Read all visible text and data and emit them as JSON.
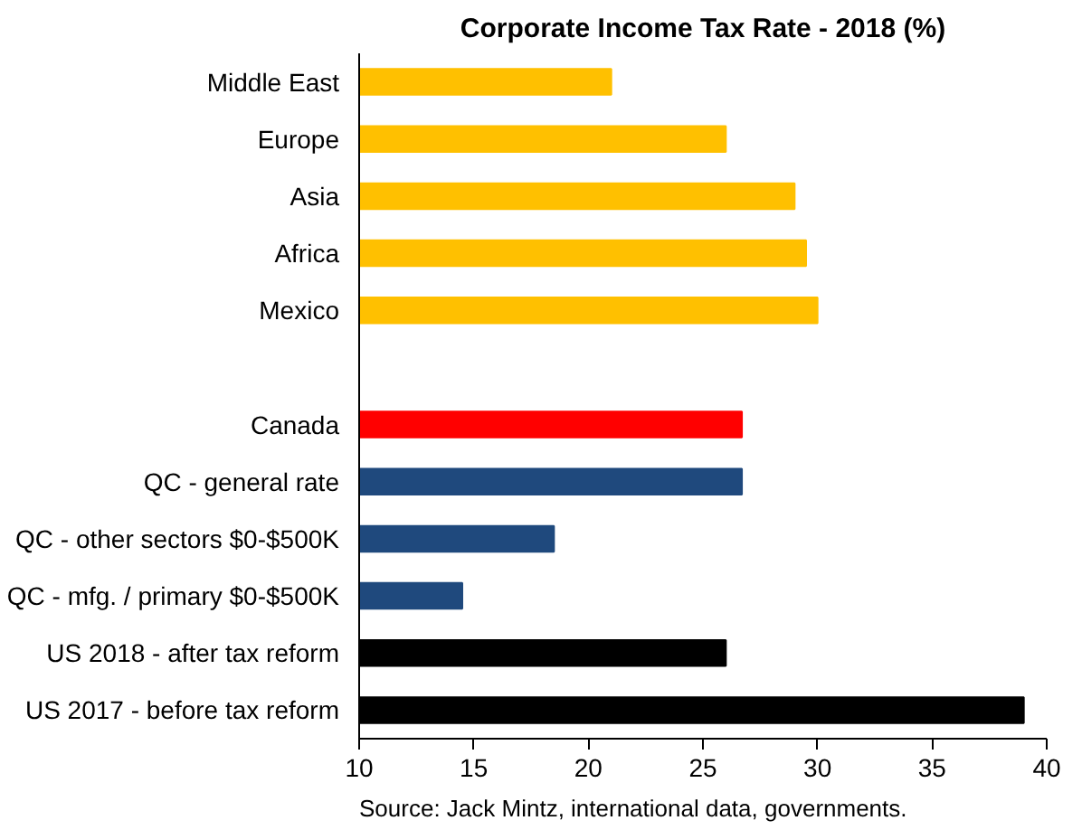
{
  "chart_data": {
    "type": "bar",
    "orientation": "horizontal",
    "title": "Corporate Income Tax Rate - 2018 (%)",
    "categories": [
      "Middle East",
      "Europe",
      "Asia",
      "Africa",
      "Mexico",
      null,
      "Canada",
      "QC - general rate",
      "QC - other sectors $0-$500K",
      "QC - mfg. / primary $0-$500K",
      "US 2018 - after tax reform",
      "US 2017 - before tax reform"
    ],
    "values": [
      21,
      26,
      29,
      29.5,
      30,
      null,
      26.7,
      26.7,
      18.5,
      14.5,
      26,
      39
    ],
    "colors": [
      "#ffc000",
      "#ffc000",
      "#ffc000",
      "#ffc000",
      "#ffc000",
      "#ffc000",
      "#ff0000",
      "#1f497d",
      "#1f497d",
      "#1f497d",
      "#000000",
      "#000000"
    ],
    "xlim": [
      10,
      40
    ],
    "xticks": [
      10,
      15,
      20,
      25,
      30,
      35,
      40
    ],
    "grid": false,
    "annotations": [
      "Source: Jack Mintz, international  data, governments."
    ]
  }
}
